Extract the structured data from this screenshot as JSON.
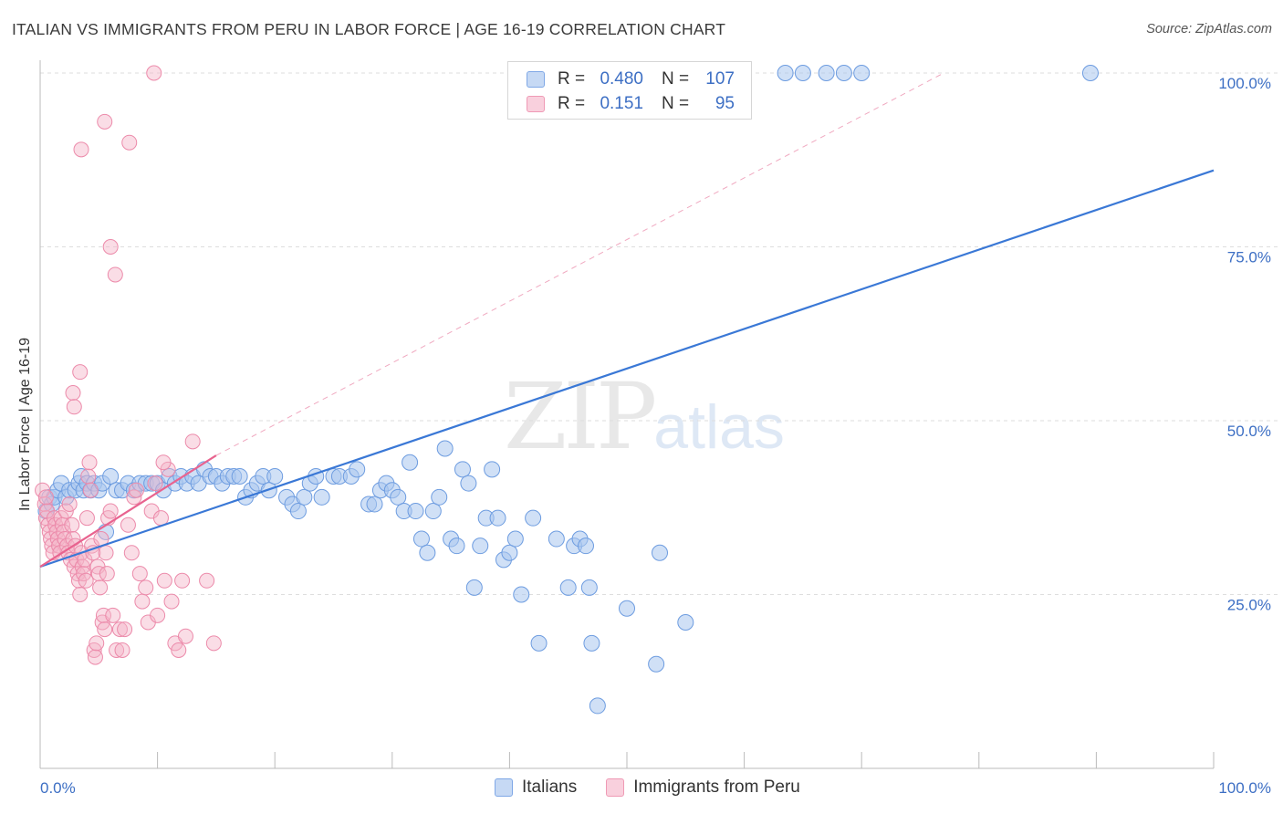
{
  "title": "ITALIAN VS IMMIGRANTS FROM PERU IN LABOR FORCE | AGE 16-19 CORRELATION CHART",
  "source": "Source: ZipAtlas.com",
  "watermark": {
    "zip": "ZIP",
    "atlas": "atlas"
  },
  "legend": {
    "rows": [
      {
        "r_label": "R =",
        "r_value": "0.480",
        "n_label": "N =",
        "n_value": "107"
      },
      {
        "r_label": "R =",
        "r_value": "0.151",
        "n_label": "N =",
        "n_value": "95"
      }
    ]
  },
  "bottom_legend": {
    "italians": "Italians",
    "peru": "Immigrants from Peru"
  },
  "colors": {
    "blue": "#3a78d6",
    "blue_fill": "#a9c6ef",
    "pink": "#e8638f",
    "pink_fill": "#f4b3c7",
    "tick_text": "#3d6fc4",
    "grid": "#dedede"
  },
  "chart_data": {
    "type": "scatter",
    "title": "ITALIAN VS IMMIGRANTS FROM PERU IN LABOR FORCE | AGE 16-19 CORRELATION CHART",
    "xlabel": "",
    "ylabel": "In Labor Force | Age 16-19",
    "xlim": [
      0,
      100
    ],
    "ylim": [
      0,
      102
    ],
    "x_tick_labels": [
      "0.0%",
      "100.0%"
    ],
    "y_ticks": [
      25,
      50,
      75,
      100
    ],
    "y_tick_labels": [
      "25.0%",
      "50.0%",
      "75.0%",
      "100.0%"
    ],
    "grid": true,
    "legend_position": "top-center",
    "series": [
      {
        "name": "Italians",
        "R": 0.48,
        "N": 107,
        "color": "#3a78d6",
        "trend": {
          "x": [
            0,
            100
          ],
          "y": [
            29.0,
            86.0
          ]
        },
        "points": [
          [
            0.5,
            37
          ],
          [
            0.8,
            39
          ],
          [
            1.0,
            38
          ],
          [
            1.2,
            39
          ],
          [
            1.5,
            40
          ],
          [
            1.8,
            41
          ],
          [
            2.2,
            39
          ],
          [
            2.5,
            40
          ],
          [
            3.0,
            40
          ],
          [
            3.3,
            41
          ],
          [
            3.5,
            42
          ],
          [
            3.7,
            40
          ],
          [
            4.0,
            41
          ],
          [
            4.3,
            40
          ],
          [
            4.6,
            41
          ],
          [
            5.0,
            40
          ],
          [
            5.3,
            41
          ],
          [
            5.6,
            34
          ],
          [
            6.0,
            42
          ],
          [
            6.5,
            40
          ],
          [
            7.0,
            40
          ],
          [
            7.5,
            41
          ],
          [
            8.0,
            40
          ],
          [
            8.5,
            41
          ],
          [
            9.0,
            41
          ],
          [
            9.5,
            41
          ],
          [
            10.0,
            41
          ],
          [
            10.5,
            40
          ],
          [
            11.0,
            42
          ],
          [
            11.5,
            41
          ],
          [
            12.0,
            42
          ],
          [
            12.5,
            41
          ],
          [
            13.0,
            42
          ],
          [
            13.5,
            41
          ],
          [
            14.0,
            43
          ],
          [
            14.5,
            42
          ],
          [
            15.0,
            42
          ],
          [
            15.5,
            41
          ],
          [
            16.0,
            42
          ],
          [
            16.5,
            42
          ],
          [
            17.0,
            42
          ],
          [
            17.5,
            39
          ],
          [
            18.0,
            40
          ],
          [
            18.5,
            41
          ],
          [
            19.0,
            42
          ],
          [
            19.5,
            40
          ],
          [
            20.0,
            42
          ],
          [
            21.0,
            39
          ],
          [
            21.5,
            38
          ],
          [
            22.0,
            37
          ],
          [
            22.5,
            39
          ],
          [
            23.0,
            41
          ],
          [
            23.5,
            42
          ],
          [
            24.0,
            39
          ],
          [
            25.0,
            42
          ],
          [
            25.5,
            42
          ],
          [
            26.5,
            42
          ],
          [
            27.0,
            43
          ],
          [
            28.0,
            38
          ],
          [
            28.5,
            38
          ],
          [
            29.0,
            40
          ],
          [
            29.5,
            41
          ],
          [
            30.0,
            40
          ],
          [
            30.5,
            39
          ],
          [
            31.0,
            37
          ],
          [
            31.5,
            44
          ],
          [
            32.0,
            37
          ],
          [
            32.5,
            33
          ],
          [
            33.0,
            31
          ],
          [
            33.5,
            37
          ],
          [
            34.0,
            39
          ],
          [
            34.5,
            46
          ],
          [
            35.0,
            33
          ],
          [
            35.5,
            32
          ],
          [
            36.0,
            43
          ],
          [
            36.5,
            41
          ],
          [
            37.0,
            26
          ],
          [
            37.5,
            32
          ],
          [
            38.0,
            36
          ],
          [
            38.5,
            43
          ],
          [
            39.0,
            36
          ],
          [
            39.5,
            30
          ],
          [
            40.0,
            31
          ],
          [
            40.5,
            33
          ],
          [
            41.0,
            25
          ],
          [
            42.0,
            36
          ],
          [
            42.5,
            18
          ],
          [
            44.0,
            33
          ],
          [
            45.0,
            26
          ],
          [
            45.5,
            32
          ],
          [
            46.0,
            33
          ],
          [
            46.5,
            32
          ],
          [
            46.8,
            26
          ],
          [
            47.0,
            18
          ],
          [
            47.5,
            9
          ],
          [
            50.0,
            23
          ],
          [
            52.5,
            15
          ],
          [
            52.8,
            31
          ],
          [
            55.0,
            21
          ],
          [
            41.0,
            98
          ],
          [
            63.5,
            100
          ],
          [
            65.0,
            100
          ],
          [
            67.0,
            100
          ],
          [
            68.5,
            100
          ],
          [
            70.0,
            100
          ],
          [
            89.5,
            100
          ],
          [
            48.0,
            100
          ]
        ]
      },
      {
        "name": "Immigrants from Peru",
        "R": 0.151,
        "N": 95,
        "color": "#e8638f",
        "trend": {
          "x": [
            0,
            15
          ],
          "y": [
            29.0,
            45.0
          ]
        },
        "extrapolation": {
          "x": [
            15,
            77
          ],
          "y": [
            45.0,
            100.0
          ]
        },
        "points": [
          [
            0.2,
            40
          ],
          [
            0.4,
            38
          ],
          [
            0.5,
            36
          ],
          [
            0.6,
            37
          ],
          [
            0.7,
            35
          ],
          [
            0.8,
            34
          ],
          [
            0.9,
            33
          ],
          [
            1.0,
            32
          ],
          [
            1.1,
            31
          ],
          [
            1.2,
            36
          ],
          [
            1.3,
            35
          ],
          [
            1.4,
            34
          ],
          [
            1.5,
            33
          ],
          [
            1.6,
            32
          ],
          [
            1.7,
            31
          ],
          [
            1.8,
            36
          ],
          [
            1.9,
            35
          ],
          [
            2.0,
            34
          ],
          [
            2.1,
            33
          ],
          [
            2.2,
            37
          ],
          [
            2.3,
            32
          ],
          [
            2.4,
            31
          ],
          [
            2.5,
            38
          ],
          [
            2.6,
            30
          ],
          [
            2.7,
            35
          ],
          [
            2.8,
            33
          ],
          [
            2.9,
            29
          ],
          [
            3.0,
            32
          ],
          [
            3.1,
            30
          ],
          [
            3.2,
            28
          ],
          [
            3.3,
            27
          ],
          [
            3.4,
            25
          ],
          [
            3.5,
            31
          ],
          [
            3.6,
            29
          ],
          [
            3.7,
            28
          ],
          [
            3.8,
            30
          ],
          [
            3.9,
            27
          ],
          [
            4.0,
            36
          ],
          [
            4.1,
            42
          ],
          [
            4.2,
            44
          ],
          [
            4.3,
            40
          ],
          [
            4.4,
            32
          ],
          [
            4.5,
            31
          ],
          [
            4.6,
            17
          ],
          [
            4.7,
            16
          ],
          [
            4.8,
            18
          ],
          [
            4.9,
            29
          ],
          [
            5.0,
            28
          ],
          [
            5.1,
            26
          ],
          [
            5.2,
            33
          ],
          [
            5.3,
            21
          ],
          [
            5.4,
            22
          ],
          [
            5.5,
            20
          ],
          [
            5.6,
            31
          ],
          [
            5.7,
            28
          ],
          [
            5.8,
            36
          ],
          [
            6.0,
            37
          ],
          [
            6.2,
            22
          ],
          [
            6.5,
            17
          ],
          [
            6.8,
            20
          ],
          [
            7.0,
            17
          ],
          [
            7.2,
            20
          ],
          [
            7.5,
            35
          ],
          [
            7.8,
            31
          ],
          [
            8.0,
            39
          ],
          [
            8.2,
            40
          ],
          [
            8.5,
            28
          ],
          [
            8.7,
            24
          ],
          [
            9.0,
            26
          ],
          [
            9.2,
            21
          ],
          [
            9.5,
            37
          ],
          [
            9.8,
            41
          ],
          [
            10.0,
            22
          ],
          [
            10.3,
            36
          ],
          [
            10.6,
            27
          ],
          [
            10.9,
            43
          ],
          [
            11.2,
            24
          ],
          [
            11.5,
            18
          ],
          [
            11.8,
            17
          ],
          [
            12.1,
            27
          ],
          [
            12.4,
            19
          ],
          [
            2.8,
            54
          ],
          [
            2.9,
            52
          ],
          [
            3.4,
            57
          ],
          [
            3.5,
            89
          ],
          [
            5.5,
            93
          ],
          [
            6.0,
            75
          ],
          [
            6.4,
            71
          ],
          [
            7.6,
            90
          ],
          [
            9.7,
            100
          ],
          [
            10.5,
            44
          ],
          [
            13.0,
            47
          ],
          [
            14.2,
            27
          ],
          [
            14.8,
            18
          ],
          [
            0.5,
            39
          ]
        ]
      }
    ]
  }
}
